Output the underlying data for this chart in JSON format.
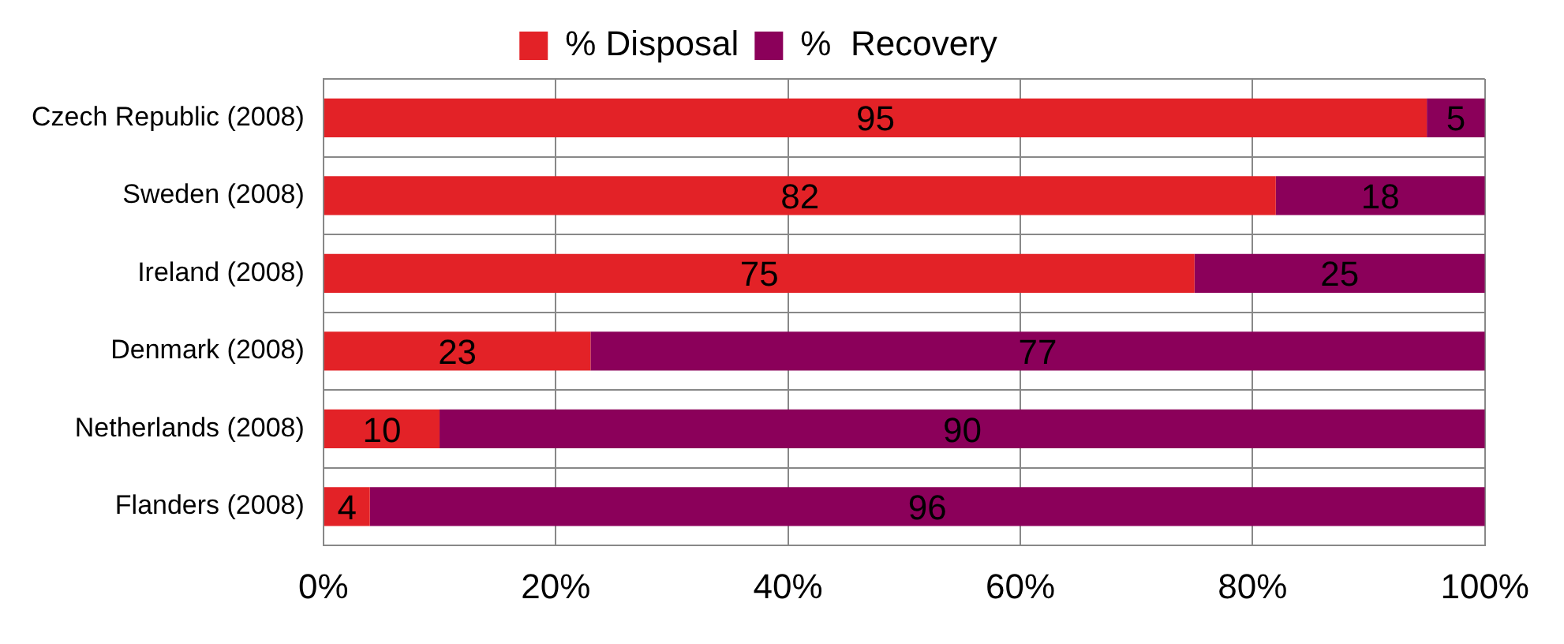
{
  "chart_data": {
    "type": "bar",
    "orientation": "horizontal",
    "stacked": true,
    "categories": [
      "Czech Republic (2008)",
      "Sweden (2008)",
      "Ireland (2008)",
      "Denmark (2008)",
      "Netherlands (2008)",
      "Flanders (2008)"
    ],
    "series": [
      {
        "name": "% Disposal",
        "color": "#e32227",
        "values": [
          95,
          82,
          75,
          23,
          10,
          4
        ]
      },
      {
        "name": "%  Recovery",
        "color": "#8b005a",
        "values": [
          5,
          18,
          25,
          77,
          90,
          96
        ]
      }
    ],
    "xlim": [
      0,
      100
    ],
    "xticks": [
      {
        "value": 0,
        "label": "0%"
      },
      {
        "value": 20,
        "label": "20%"
      },
      {
        "value": 40,
        "label": "40%"
      },
      {
        "value": 60,
        "label": "60%"
      },
      {
        "value": 80,
        "label": "80%"
      },
      {
        "value": 100,
        "label": "100%"
      }
    ],
    "data_labels": true,
    "grid": true,
    "legend": "top"
  }
}
